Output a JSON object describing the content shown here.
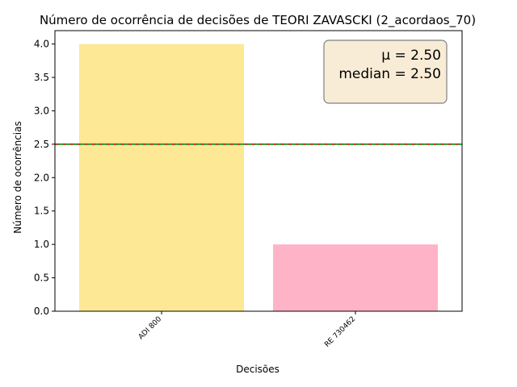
{
  "chart_data": {
    "type": "bar",
    "title": "Número de ocorrência de decisões de TEORI ZAVASCKI (2_acordaos_70)",
    "xlabel": "Decisões",
    "ylabel": "Número de ocorrências",
    "categories": [
      "ADI 800",
      "RE 730462"
    ],
    "values": [
      4,
      1
    ],
    "colors": [
      "#fde895",
      "#ffb3c6"
    ],
    "ylim": [
      0,
      4.2
    ],
    "yticks": [
      "0.0",
      "0.5",
      "1.0",
      "1.5",
      "2.0",
      "2.5",
      "3.0",
      "3.5",
      "4.0"
    ],
    "mean": 2.5,
    "median": 2.5,
    "mean_line_color": "#d62728",
    "median_line_color": "#2ca02c",
    "stats_box": {
      "mu_text": "μ = 2.50",
      "median_text": "median = 2.50",
      "background": "#f8ecd6",
      "placement": "top-right"
    },
    "grid": false,
    "legend": "none"
  }
}
